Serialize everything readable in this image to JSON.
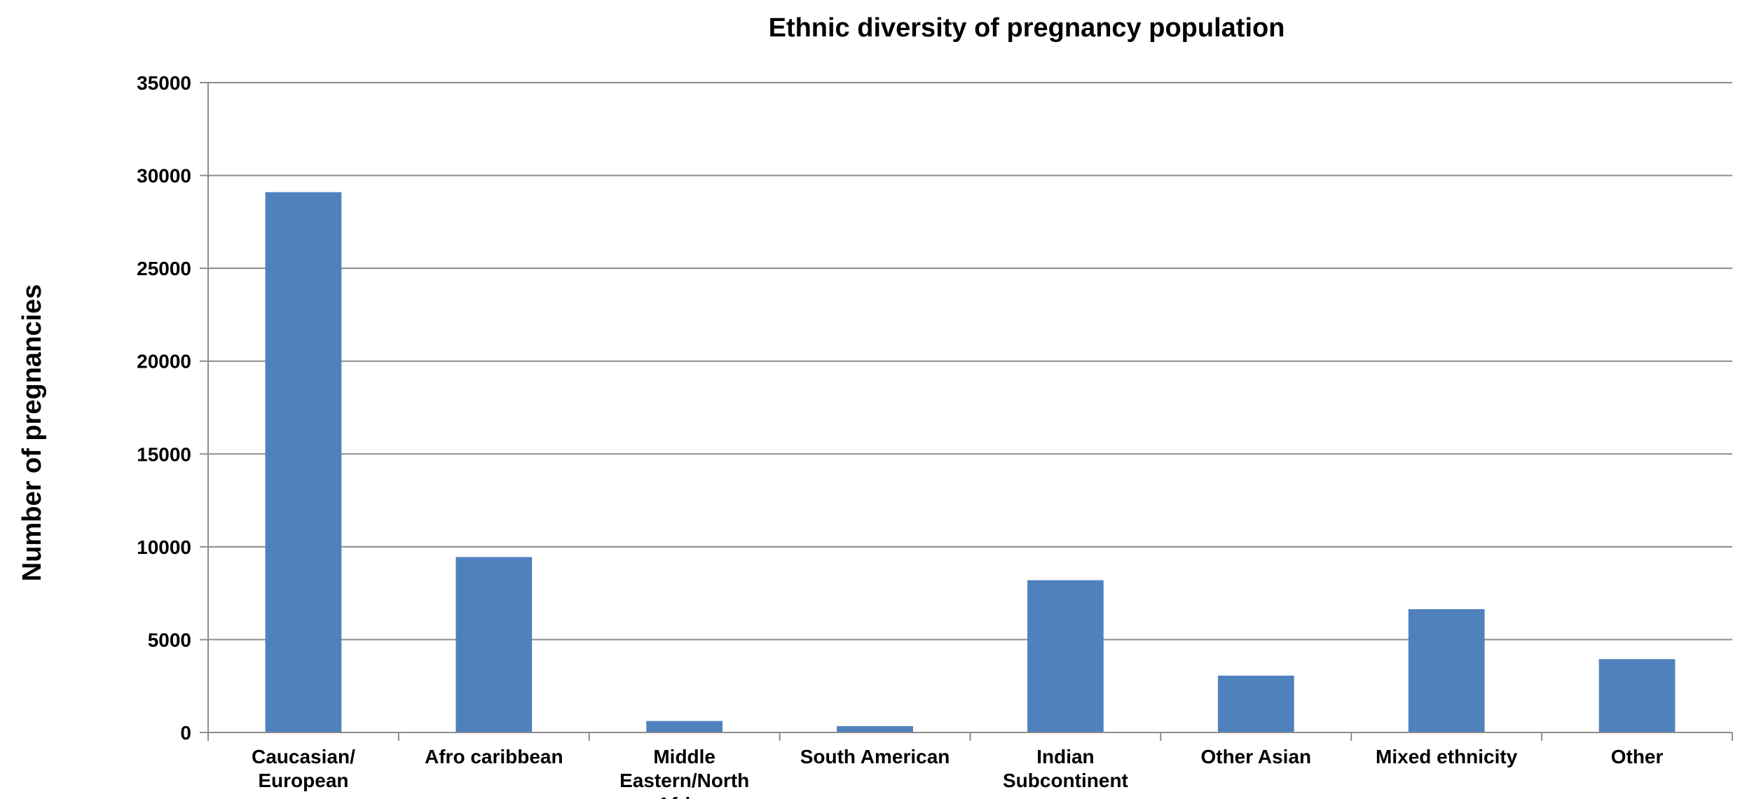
{
  "chart_data": {
    "type": "bar",
    "title": "Ethnic diversity of pregnancy population",
    "xlabel": "",
    "ylabel": "Number of pregnancies",
    "ylim": [
      0,
      35000
    ],
    "yticks": [
      0,
      5000,
      10000,
      15000,
      20000,
      25000,
      30000,
      35000
    ],
    "grid": true,
    "legend": "none",
    "categories": [
      "Caucasian/ European",
      "Afro caribbean",
      "Middle Eastern/North Africa",
      "South American",
      "Indian Subcontinent",
      "Other Asian",
      "Mixed ethnicity",
      "Other"
    ],
    "category_lines": [
      [
        "Caucasian/",
        "European"
      ],
      [
        "Afro caribbean"
      ],
      [
        "Middle",
        "Eastern/North",
        "Africa"
      ],
      [
        "South American"
      ],
      [
        "Indian",
        "Subcontinent"
      ],
      [
        "Other Asian"
      ],
      [
        "Mixed ethnicity"
      ],
      [
        "Other"
      ]
    ],
    "values": [
      29100,
      9450,
      620,
      340,
      8200,
      3060,
      6640,
      3950
    ],
    "bar_color": "#4f81bd"
  }
}
